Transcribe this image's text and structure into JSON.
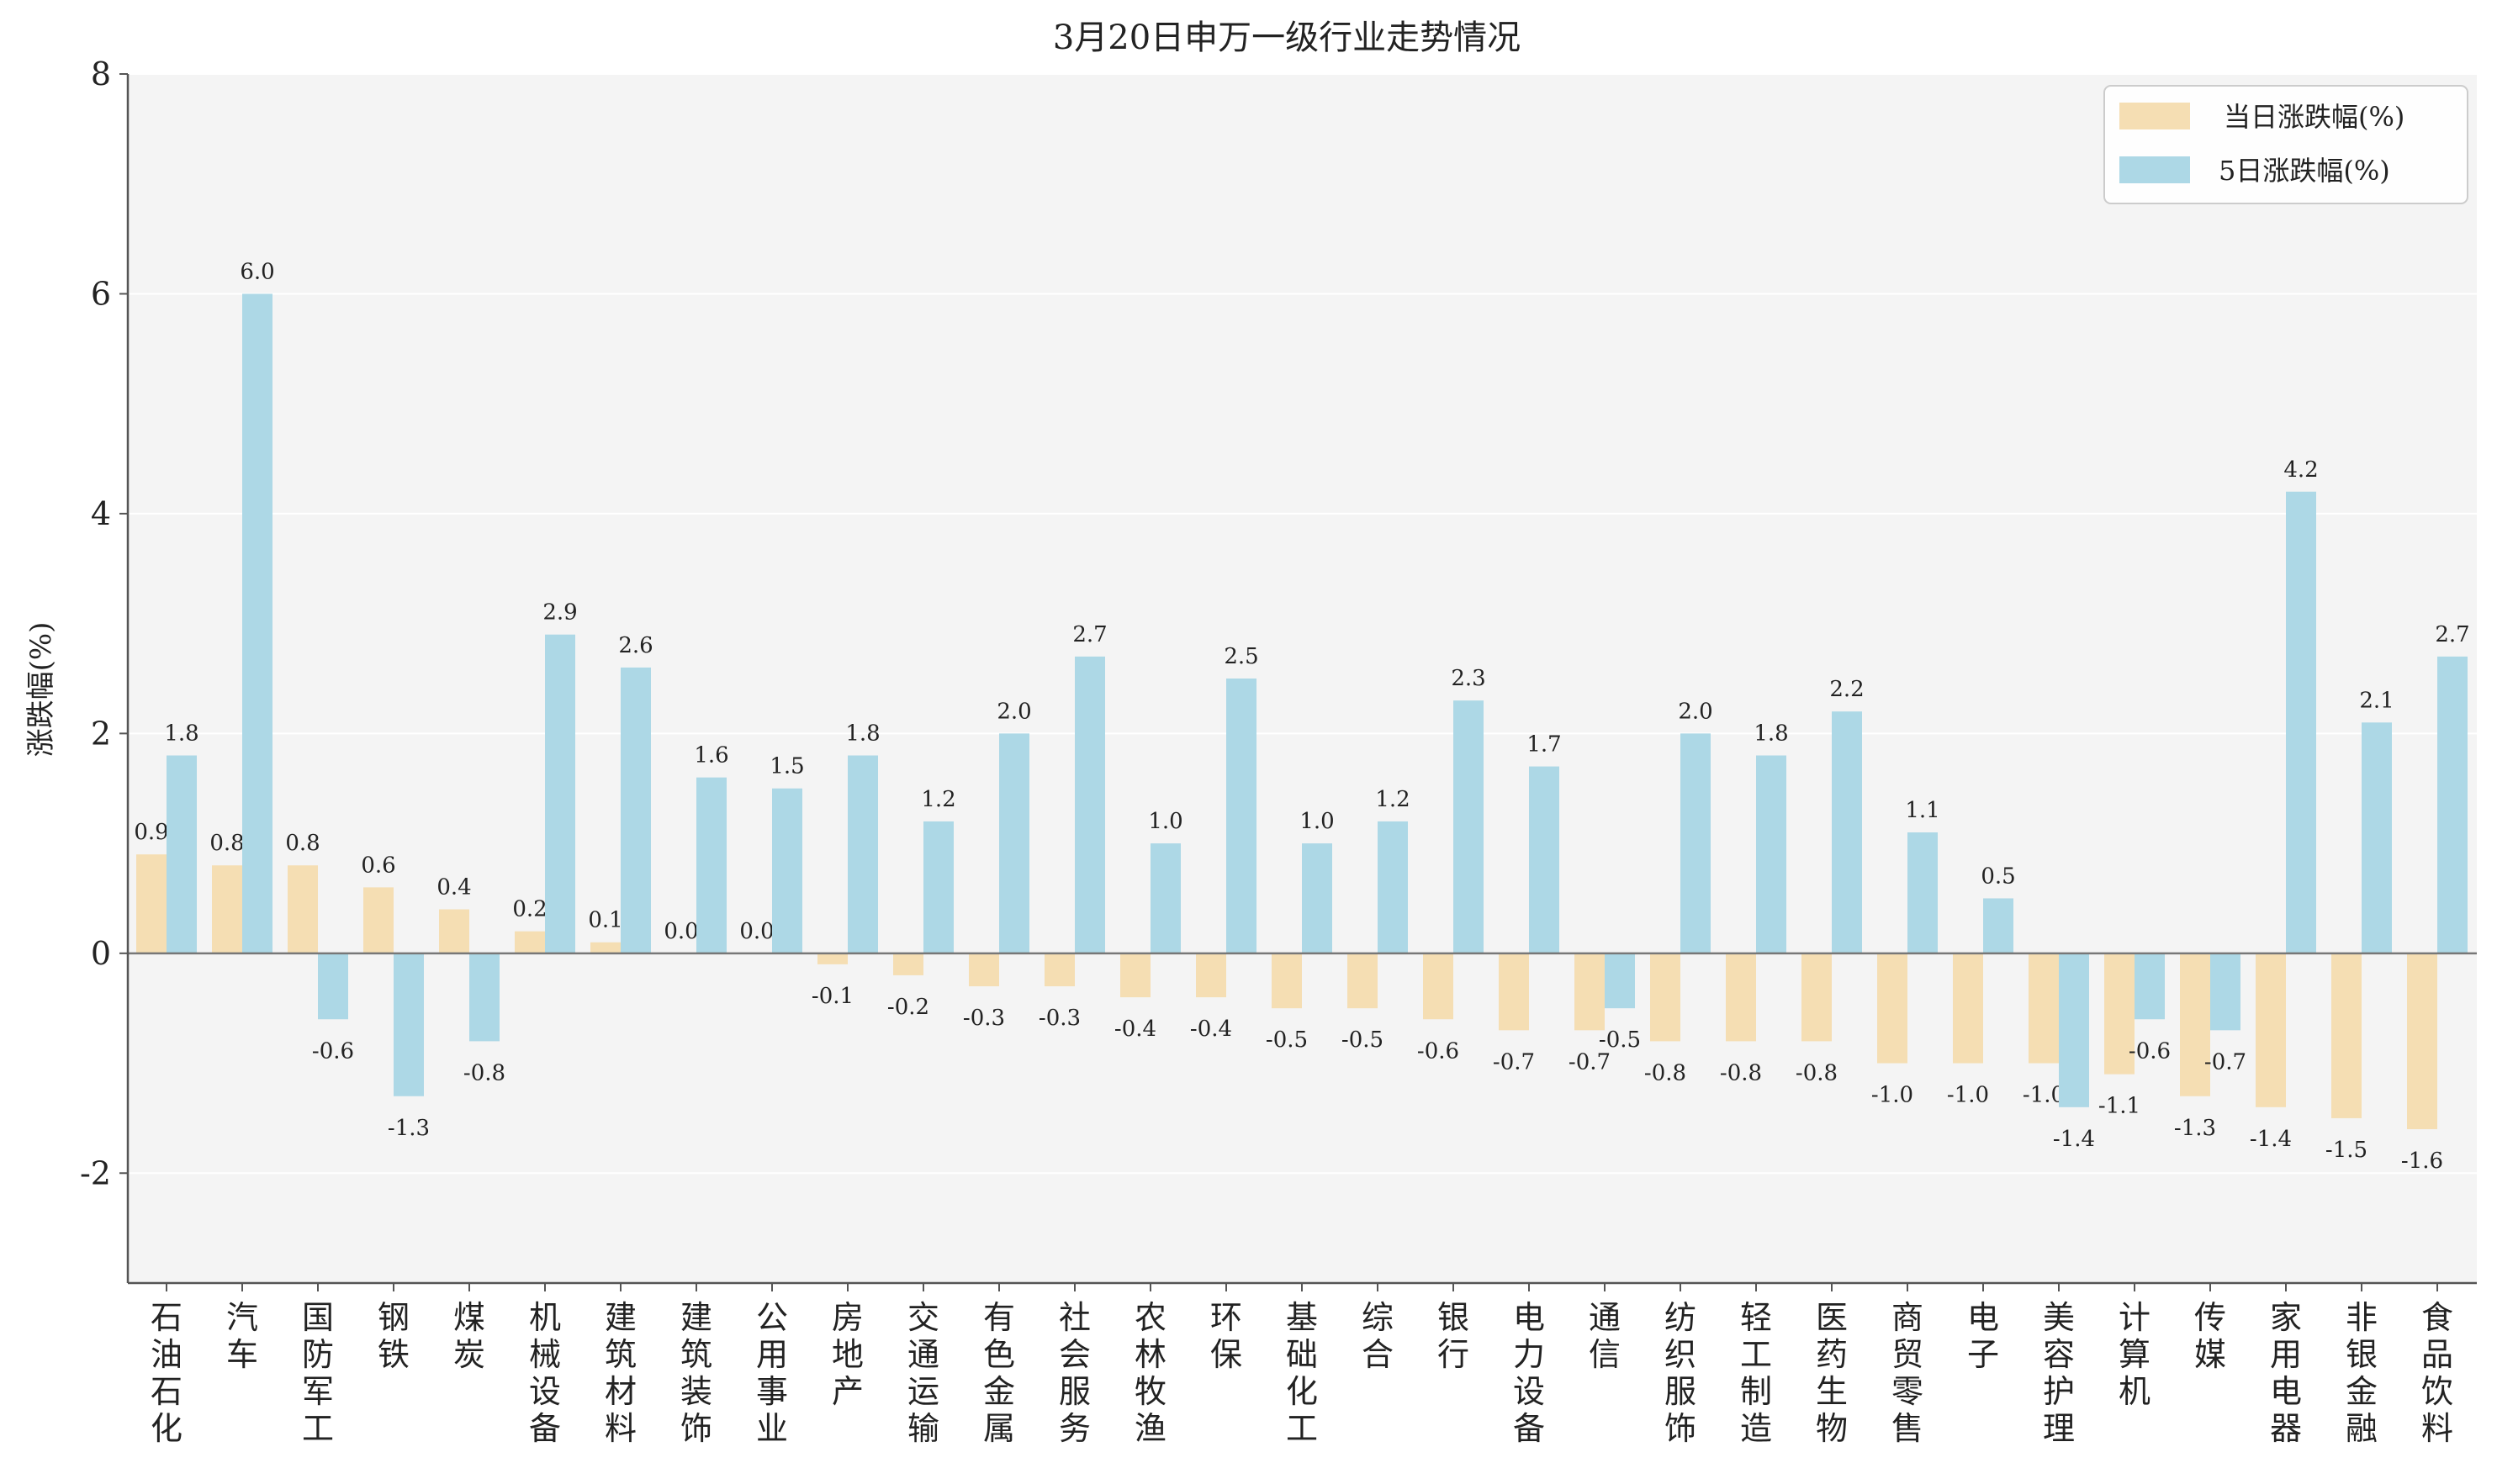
{
  "chart_data": {
    "type": "bar",
    "title": "3月20日申万一级行业走势情况",
    "xlabel": "",
    "ylabel": "涨跌幅(%)",
    "ylim": [
      -3,
      8
    ],
    "yticks": [
      -2,
      0,
      2,
      4,
      6,
      8
    ],
    "grid": "horizontal",
    "legend_position": "top-right",
    "categories": [
      "石油石化",
      "汽车",
      "国防军工",
      "钢铁",
      "煤炭",
      "机械设备",
      "建筑材料",
      "建筑装饰",
      "公用事业",
      "房地产",
      "交通运输",
      "有色金属",
      "社会服务",
      "农林牧渔",
      "环保",
      "基础化工",
      "综合",
      "银行",
      "电力设备",
      "通信",
      "纺织服饰",
      "轻工制造",
      "医药生物",
      "商贸零售",
      "电子",
      "美容护理",
      "计算机",
      "传媒",
      "家用电器",
      "非银金融",
      "食品饮料"
    ],
    "series": [
      {
        "name": "当日涨跌幅(%)",
        "color": "#F5DEB3",
        "values": [
          0.9,
          0.8,
          0.8,
          0.6,
          0.4,
          0.2,
          0.1,
          0.0,
          0.0,
          -0.1,
          -0.2,
          -0.3,
          -0.3,
          -0.4,
          -0.4,
          -0.5,
          -0.5,
          -0.6,
          -0.7,
          -0.7,
          -0.8,
          -0.8,
          -0.8,
          -1.0,
          -1.0,
          -1.0,
          -1.1,
          -1.3,
          -1.4,
          -1.5,
          -1.6
        ]
      },
      {
        "name": "5日涨跌幅(%)",
        "color": "#ADD8E6",
        "values": [
          1.8,
          6.0,
          -0.6,
          -1.3,
          -0.8,
          2.9,
          2.6,
          1.6,
          1.5,
          1.8,
          1.2,
          2.0,
          2.7,
          1.0,
          2.5,
          1.0,
          1.2,
          2.3,
          1.7,
          -0.5,
          2.0,
          1.8,
          2.2,
          1.1,
          0.5,
          -1.4,
          -0.6,
          -0.7,
          4.2,
          2.1,
          2.7
        ]
      }
    ]
  }
}
